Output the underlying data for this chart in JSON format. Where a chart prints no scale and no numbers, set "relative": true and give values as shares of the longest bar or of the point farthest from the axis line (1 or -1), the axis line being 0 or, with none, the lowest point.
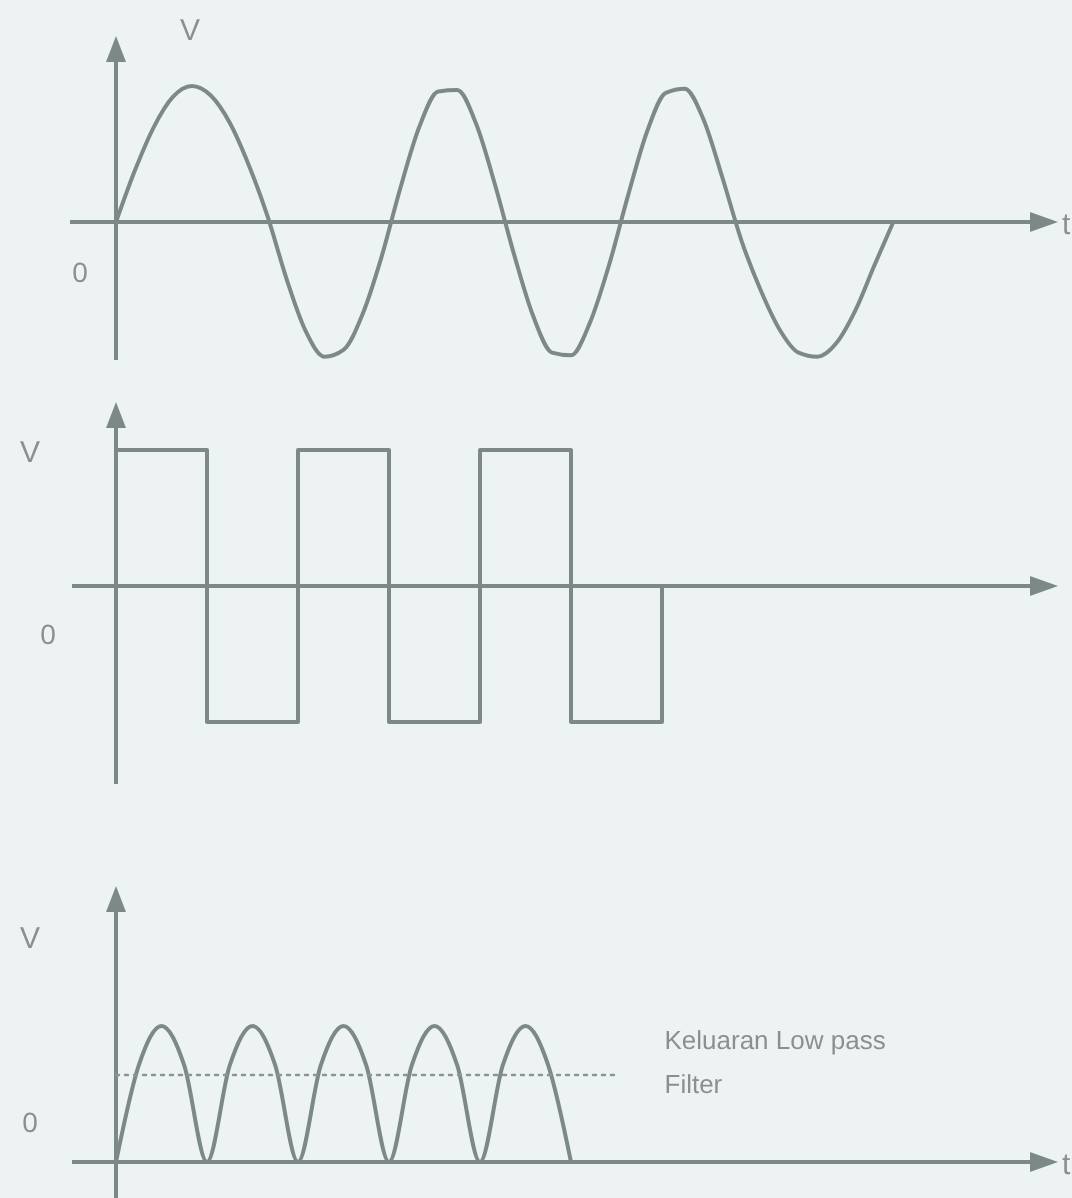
{
  "chart_data": [
    {
      "type": "line",
      "relative": true,
      "xlabel": "t",
      "ylabel": "V",
      "annotations": [
        "0"
      ],
      "categories": [
        null,
        null,
        null,
        null,
        null,
        null,
        null,
        null,
        null,
        null,
        null,
        null,
        null,
        null,
        null,
        null,
        null,
        null,
        null,
        null,
        null,
        null,
        null,
        null,
        null,
        null,
        null,
        null,
        null,
        null,
        null,
        null,
        null,
        null,
        null,
        null,
        null,
        null,
        null,
        null,
        null,
        null,
        null,
        null,
        null,
        null,
        null,
        null,
        null
      ],
      "series": [
        {
          "color": "#7d8888",
          "values": [
            0,
            0.38,
            0.7,
            0.92,
            1,
            0.93,
            0.73,
            0.42,
            0.04,
            -0.42,
            -0.8,
            -0.99,
            -0.94,
            -0.68,
            -0.26,
            0.25,
            0.7,
            0.96,
            0.97,
            0.72,
            0.27,
            -0.24,
            -0.69,
            -0.96,
            -0.98,
            -0.74,
            -0.32,
            0.19,
            0.66,
            0.95,
            0.98,
            0.75,
            0.32,
            -0.14,
            -0.5,
            -0.79,
            -0.96,
            -0.99,
            -0.89,
            -0.65,
            -0.32,
            0,
            null,
            null,
            null,
            null,
            null,
            null,
            null
          ]
        }
      ]
    },
    {
      "type": "step",
      "relative": true,
      "ylabel": "V",
      "annotations": [
        "0"
      ],
      "categories": [
        null,
        null,
        null,
        null,
        null,
        null,
        null,
        null,
        null,
        null,
        null
      ],
      "series": [
        {
          "color": "#7d8888",
          "values": [
            1,
            -1,
            1,
            -1,
            1,
            -1,
            0,
            null,
            null,
            null,
            null
          ]
        }
      ]
    },
    {
      "type": "line",
      "relative": true,
      "xlabel": "t",
      "ylabel": "V",
      "annotations": [
        "0"
      ],
      "categories": [
        null,
        null,
        null,
        null,
        null,
        null,
        null,
        null,
        null,
        null,
        null,
        null,
        null,
        null,
        null,
        null,
        null,
        null,
        null,
        null,
        null,
        null,
        null,
        null,
        null,
        null,
        null,
        null,
        null,
        null,
        null,
        null,
        null,
        null,
        null,
        null,
        null,
        null,
        null,
        null,
        null
      ],
      "series": [
        {
          "color": "#7d8888",
          "values": [
            0,
            0.71,
            1,
            0.71,
            0,
            0.71,
            1,
            0.71,
            0,
            0.71,
            1,
            0.71,
            0,
            0.71,
            1,
            0.71,
            0,
            0.71,
            1,
            0.71,
            0,
            null,
            null,
            null,
            null,
            null,
            null,
            null,
            null,
            null,
            null,
            null,
            null,
            null,
            null,
            null,
            null,
            null,
            null,
            null,
            null
          ]
        },
        {
          "name": "Keluaran Low pass Filter",
          "color": "#8a9595",
          "line_style": "dotted",
          "values": [
            0.64,
            0.64,
            0.64,
            0.64,
            0.64,
            0.64,
            0.64,
            0.64,
            0.64,
            0.64,
            0.64,
            0.64,
            0.64,
            0.64,
            0.64,
            0.64,
            0.64,
            0.64,
            0.64,
            0.64,
            0.64,
            0.64,
            0.64,
            null,
            null,
            null,
            null,
            null,
            null,
            null,
            null,
            null,
            null,
            null,
            null,
            null,
            null,
            null,
            null,
            null,
            null
          ]
        }
      ]
    }
  ]
}
